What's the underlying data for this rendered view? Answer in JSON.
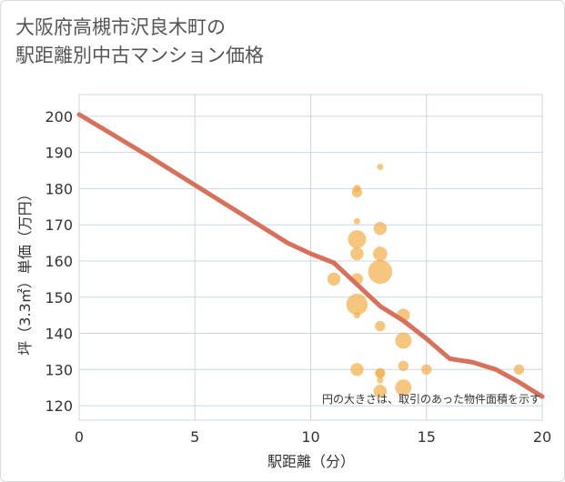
{
  "chart_data": {
    "type": "scatter",
    "title_line1": "大阪府高槻市沢良木町の",
    "title_line2": "駅距離別中古マンション価格",
    "xlabel": "駅距離（分）",
    "ylabel": "坪（3.3㎡）単価（万円）",
    "xlim": [
      0,
      20
    ],
    "ylim": [
      116,
      206
    ],
    "x_ticks": [
      0,
      5,
      10,
      15,
      20
    ],
    "y_ticks": [
      120,
      130,
      140,
      150,
      160,
      170,
      180,
      190,
      200
    ],
    "grid": true,
    "note": "円の大きさは、取引のあった物件面積を示す",
    "colors": {
      "bubble": "#f2b04c",
      "line": "#d9705a",
      "grid": "#c9d7e6"
    },
    "scatter": [
      {
        "x": 12,
        "y": 180,
        "size": 1.5
      },
      {
        "x": 12,
        "y": 179,
        "size": 3
      },
      {
        "x": 13,
        "y": 186,
        "size": 1
      },
      {
        "x": 12,
        "y": 171,
        "size": 1
      },
      {
        "x": 13,
        "y": 169,
        "size": 5
      },
      {
        "x": 12,
        "y": 166,
        "size": 10
      },
      {
        "x": 12,
        "y": 162,
        "size": 5
      },
      {
        "x": 13,
        "y": 162,
        "size": 6
      },
      {
        "x": 13,
        "y": 157,
        "size": 18
      },
      {
        "x": 11,
        "y": 155,
        "size": 5
      },
      {
        "x": 12,
        "y": 155,
        "size": 4
      },
      {
        "x": 12,
        "y": 148,
        "size": 14
      },
      {
        "x": 12,
        "y": 145,
        "size": 1
      },
      {
        "x": 14,
        "y": 145,
        "size": 5
      },
      {
        "x": 13,
        "y": 142,
        "size": 3
      },
      {
        "x": 14,
        "y": 138,
        "size": 8
      },
      {
        "x": 14,
        "y": 131,
        "size": 3
      },
      {
        "x": 12,
        "y": 130,
        "size": 5
      },
      {
        "x": 13,
        "y": 129,
        "size": 3
      },
      {
        "x": 13,
        "y": 129,
        "size": 2
      },
      {
        "x": 15,
        "y": 130,
        "size": 3
      },
      {
        "x": 19,
        "y": 130,
        "size": 3
      },
      {
        "x": 13,
        "y": 127,
        "size": 1
      },
      {
        "x": 13,
        "y": 124,
        "size": 5
      },
      {
        "x": 14,
        "y": 125,
        "size": 8
      }
    ],
    "trend": [
      {
        "x": 0,
        "y": 200.5
      },
      {
        "x": 3,
        "y": 189
      },
      {
        "x": 6,
        "y": 177
      },
      {
        "x": 9,
        "y": 165
      },
      {
        "x": 10,
        "y": 162
      },
      {
        "x": 11,
        "y": 159.5
      },
      {
        "x": 12,
        "y": 153.5
      },
      {
        "x": 13,
        "y": 147.5
      },
      {
        "x": 14,
        "y": 143.5
      },
      {
        "x": 15,
        "y": 138.5
      },
      {
        "x": 16,
        "y": 133
      },
      {
        "x": 17,
        "y": 132
      },
      {
        "x": 18,
        "y": 130
      },
      {
        "x": 19,
        "y": 126.5
      },
      {
        "x": 20,
        "y": 122.5
      }
    ]
  }
}
